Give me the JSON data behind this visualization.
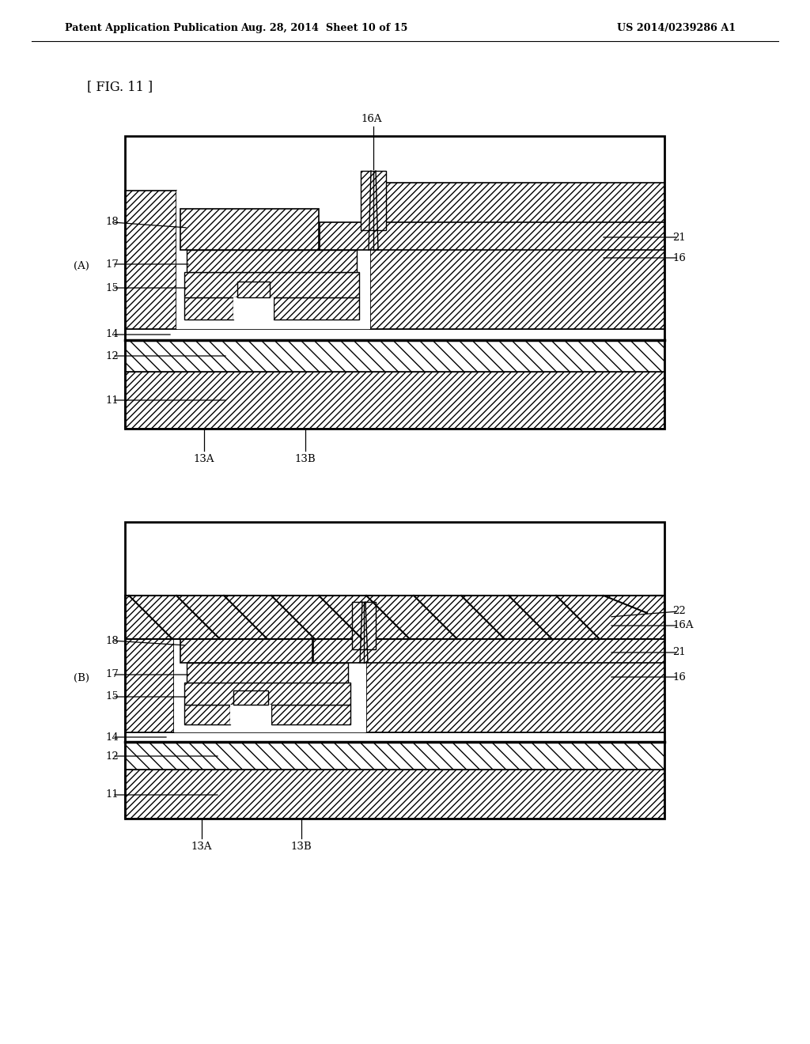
{
  "header_left": "Patent Application Publication",
  "header_mid": "Aug. 28, 2014  Sheet 10 of 15",
  "header_right": "US 2014/0239286 A1",
  "fig_label": "[ FIG. 11 ]",
  "bg_color": "#ffffff"
}
